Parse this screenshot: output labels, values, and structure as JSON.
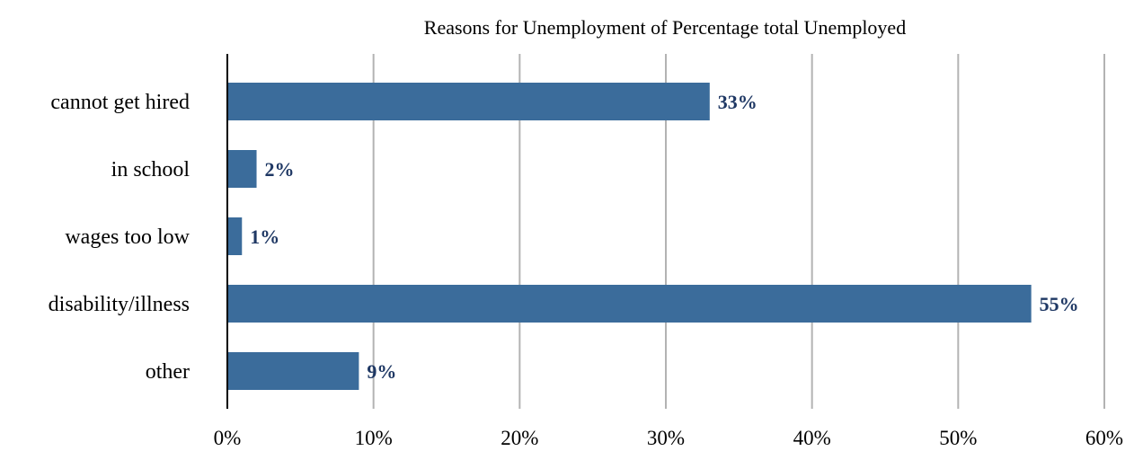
{
  "chart_data": {
    "type": "bar",
    "orientation": "horizontal",
    "title": "Reasons for Unemployment of Percentage total Unemployed",
    "categories": [
      "cannot get hired",
      "in school",
      "wages too low",
      "disability/illness",
      "other"
    ],
    "values": [
      33,
      2,
      1,
      55,
      9
    ],
    "data_labels": [
      "33%",
      "2%",
      "1%",
      "55%",
      "9%"
    ],
    "xlim": [
      0,
      60
    ],
    "x_ticks": [
      0,
      10,
      20,
      30,
      40,
      50,
      60
    ],
    "x_tick_labels": [
      "0%",
      "10%",
      "20%",
      "30%",
      "40%",
      "50%",
      "60%"
    ],
    "xlabel": "",
    "ylabel": "",
    "grid": "vertical",
    "legend": "none",
    "colors": {
      "bar": "#3b6c9b",
      "data_label": "#1f3864",
      "grid": "#b3b3b3"
    }
  }
}
